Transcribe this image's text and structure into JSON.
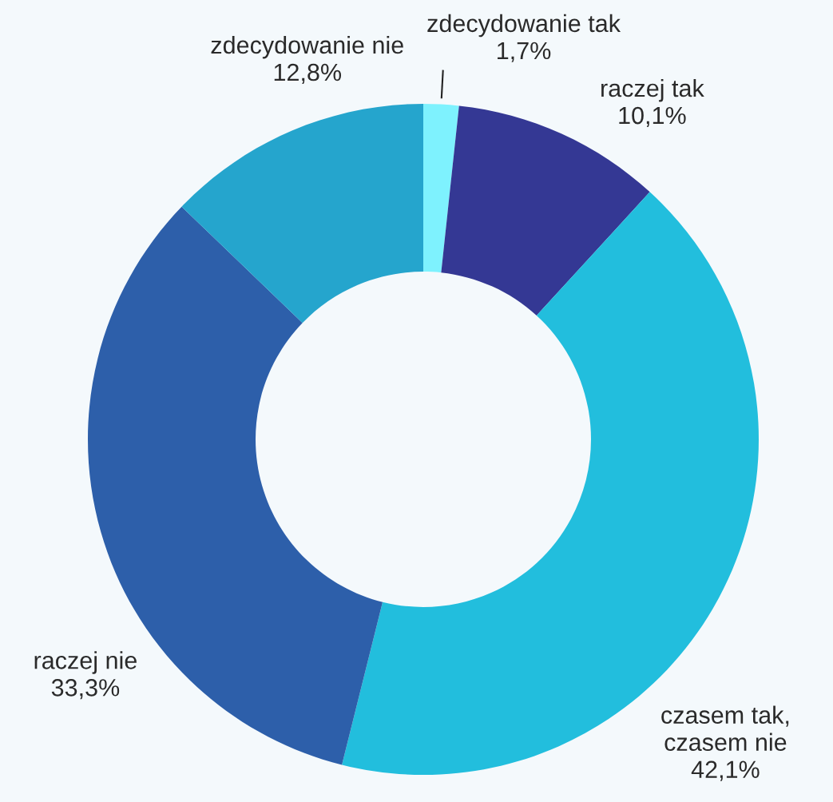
{
  "chart_data": {
    "type": "donut",
    "categories": [
      "zdecydowanie tak",
      "raczej tak",
      "czasem tak,\nczasem nie",
      "raczej nie",
      "zdecydowanie nie"
    ],
    "values": [
      1.7,
      10.1,
      42.1,
      33.3,
      12.8
    ],
    "value_labels": [
      "1,7%",
      "10,1%",
      "42,1%",
      "33,3%",
      "12,8%"
    ],
    "colors": [
      "#7ef2fe",
      "#343894",
      "#22bedd",
      "#2d5faa",
      "#25a5cd"
    ],
    "legend": false
  }
}
